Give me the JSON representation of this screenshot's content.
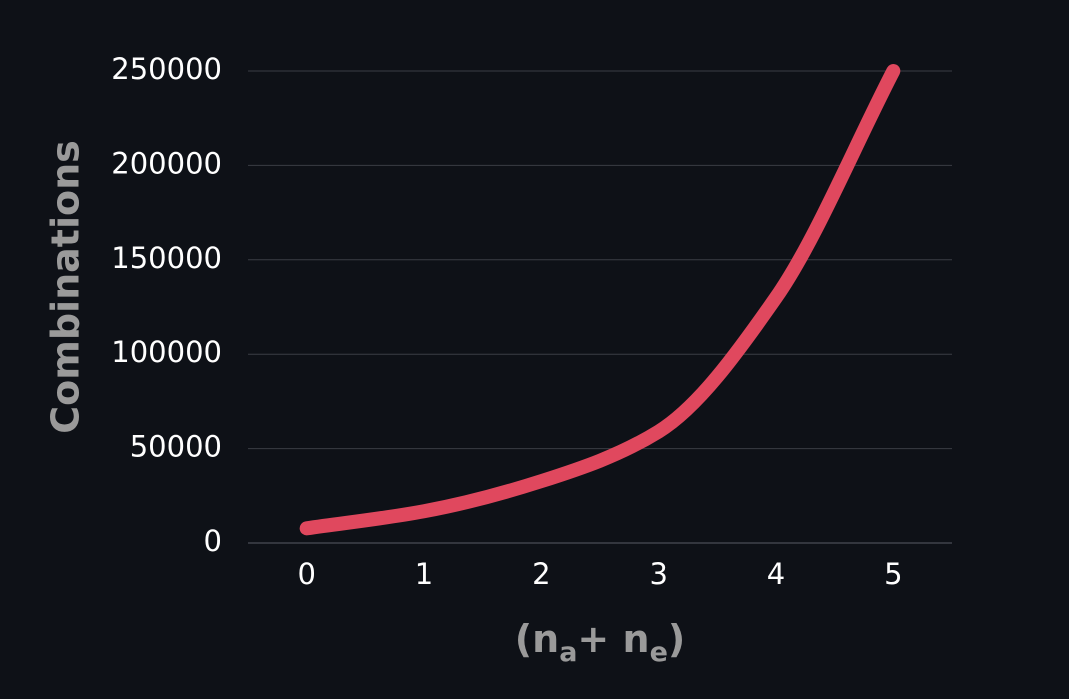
{
  "chart_data": {
    "type": "line",
    "title": "",
    "xlabel": {
      "paren_open": "(",
      "n1": "n",
      "sub1": "a",
      "plus": "+",
      "n2": "n",
      "sub2": "e",
      "paren_close": ")"
    },
    "ylabel": "Combinations",
    "x": [
      0,
      1,
      2,
      3,
      4,
      5
    ],
    "x_ticks": [
      "0",
      "1",
      "2",
      "3",
      "4",
      "5"
    ],
    "y_ticks": [
      "0",
      "50000",
      "100000",
      "150000",
      "200000",
      "250000"
    ],
    "xlim": [
      -0.5,
      5.5
    ],
    "ylim": [
      0,
      250000
    ],
    "grid": true,
    "series": [
      {
        "color": "#e0485e",
        "values": [
          7776,
          16807,
          32768,
          59049,
          130000,
          250000
        ]
      }
    ]
  }
}
